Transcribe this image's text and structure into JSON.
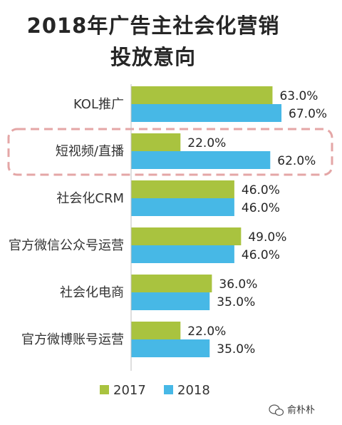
{
  "chart_data": {
    "type": "bar",
    "orientation": "horizontal",
    "title_line1": "2018年广告主社会化营销",
    "title_line2": "投放意向",
    "categories": [
      "KOL推广",
      "短视频/直播",
      "社会化CRM",
      "官方微信公众号运营",
      "社会化电商",
      "官方微博账号运营"
    ],
    "series": [
      {
        "name": "2017",
        "color": "#a9c33f",
        "values": [
          63.0,
          22.0,
          46.0,
          49.0,
          36.0,
          22.0
        ],
        "labels": [
          "63.0%",
          "22.0%",
          "46.0%",
          "49.0%",
          "36.0%",
          "22.0%"
        ]
      },
      {
        "name": "2018",
        "color": "#47b8e6",
        "values": [
          67.0,
          62.0,
          46.0,
          46.0,
          35.0,
          35.0
        ],
        "labels": [
          "67.0%",
          "62.0%",
          "46.0%",
          "46.0%",
          "35.0%",
          "35.0%"
        ]
      }
    ],
    "highlighted_category": "短视频/直播",
    "highlight_color": "#e4a6a6",
    "legend_position": "bottom",
    "grid": false
  },
  "watermark": {
    "text": "俞朴朴",
    "icon": "wechat-icon"
  }
}
